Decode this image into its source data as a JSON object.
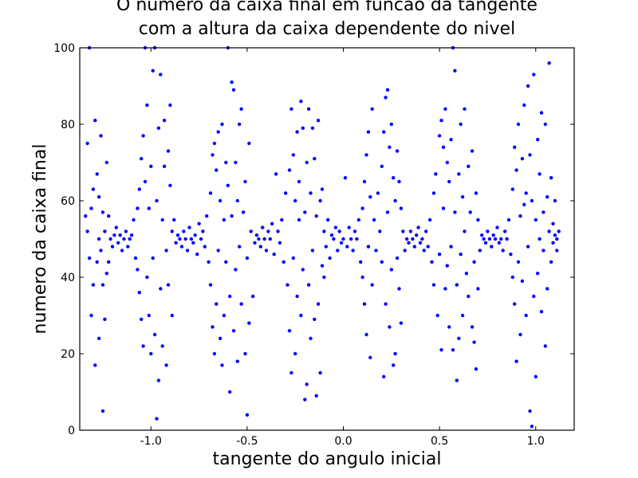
{
  "chart_data": {
    "type": "scatter",
    "title_line1": "O numero da caixa final em funcao da tangente",
    "title_line2": "com a altura da caixa dependente do nivel",
    "xlabel": "tangente do angulo inicial",
    "ylabel": "numero da caixa final",
    "xlim": [
      -1.37,
      1.2
    ],
    "ylim": [
      0,
      100
    ],
    "xticks": [
      -1.0,
      -0.5,
      0.0,
      0.5,
      1.0
    ],
    "xtick_labels": [
      "-1.0",
      "-0.5",
      "0.0",
      "0.5",
      "1.0"
    ],
    "yticks": [
      0,
      20,
      40,
      60,
      80,
      100
    ],
    "ytick_labels": [
      "0",
      "20",
      "40",
      "60",
      "80",
      "100"
    ],
    "grid": false,
    "color": "#0000ff",
    "x_range_of_points": [
      -1.35,
      1.12
    ],
    "central_value": 50,
    "points": [
      [
        -1.34,
        56
      ],
      [
        -1.33,
        52
      ],
      [
        -1.33,
        75
      ],
      [
        -1.32,
        100
      ],
      [
        -1.32,
        45
      ],
      [
        -1.31,
        30
      ],
      [
        -1.31,
        58
      ],
      [
        -1.3,
        63
      ],
      [
        -1.3,
        38
      ],
      [
        -1.29,
        17
      ],
      [
        -1.29,
        81
      ],
      [
        -1.28,
        67
      ],
      [
        -1.28,
        44
      ],
      [
        -1.27,
        24
      ],
      [
        -1.27,
        61
      ],
      [
        -1.27,
        50
      ],
      [
        -1.26,
        77
      ],
      [
        -1.26,
        47
      ],
      [
        -1.25,
        5
      ],
      [
        -1.25,
        38
      ],
      [
        -1.25,
        57
      ],
      [
        -1.24,
        29
      ],
      [
        -1.24,
        52
      ],
      [
        -1.23,
        70
      ],
      [
        -1.23,
        41
      ],
      [
        -1.22,
        44
      ],
      [
        -1.22,
        56
      ],
      [
        -1.21,
        50
      ],
      [
        -1.2,
        48
      ],
      [
        -1.19,
        51
      ],
      [
        -1.18,
        53
      ],
      [
        -1.17,
        49
      ],
      [
        -1.16,
        51
      ],
      [
        -1.15,
        47
      ],
      [
        -1.14,
        50
      ],
      [
        -1.13,
        52
      ],
      [
        -1.12,
        48
      ],
      [
        -1.11,
        50
      ],
      [
        -1.1,
        51
      ],
      [
        -1.09,
        55
      ],
      [
        -1.08,
        45
      ],
      [
        -1.07,
        58
      ],
      [
        -1.07,
        42
      ],
      [
        -1.06,
        63
      ],
      [
        -1.06,
        36
      ],
      [
        -1.05,
        71
      ],
      [
        -1.05,
        29
      ],
      [
        -1.04,
        77
      ],
      [
        -1.04,
        22
      ],
      [
        -1.03,
        100
      ],
      [
        -1.03,
        65
      ],
      [
        -1.02,
        40
      ],
      [
        -1.02,
        85
      ],
      [
        -1.01,
        58
      ],
      [
        -1.01,
        30
      ],
      [
        -1.0,
        20
      ],
      [
        -1.0,
        69
      ],
      [
        -0.99,
        94
      ],
      [
        -0.99,
        45
      ],
      [
        -0.98,
        100
      ],
      [
        -0.98,
        25
      ],
      [
        -0.97,
        60
      ],
      [
        -0.97,
        3
      ],
      [
        -0.96,
        13
      ],
      [
        -0.96,
        79
      ],
      [
        -0.95,
        37
      ],
      [
        -0.95,
        93
      ],
      [
        -0.94,
        55
      ],
      [
        -0.94,
        22
      ],
      [
        -0.93,
        69
      ],
      [
        -0.93,
        81
      ],
      [
        -0.92,
        47
      ],
      [
        -0.92,
        17
      ],
      [
        -0.91,
        73
      ],
      [
        -0.91,
        38
      ],
      [
        -0.9,
        64
      ],
      [
        -0.9,
        85
      ],
      [
        -0.89,
        30
      ],
      [
        -0.89,
        52
      ],
      [
        -0.88,
        55
      ],
      [
        -0.87,
        49
      ],
      [
        -0.86,
        51
      ],
      [
        -0.85,
        50
      ],
      [
        -0.84,
        48
      ],
      [
        -0.83,
        52
      ],
      [
        -0.82,
        50
      ],
      [
        -0.81,
        47
      ],
      [
        -0.8,
        53
      ],
      [
        -0.79,
        50
      ],
      [
        -0.78,
        49
      ],
      [
        -0.77,
        51
      ],
      [
        -0.76,
        46
      ],
      [
        -0.75,
        54
      ],
      [
        -0.74,
        50
      ],
      [
        -0.73,
        52
      ],
      [
        -0.72,
        48
      ],
      [
        -0.71,
        56
      ],
      [
        -0.7,
        44
      ],
      [
        -0.69,
        62
      ],
      [
        -0.69,
        38
      ],
      [
        -0.68,
        72
      ],
      [
        -0.68,
        27
      ],
      [
        -0.67,
        75
      ],
      [
        -0.67,
        20
      ],
      [
        -0.66,
        68
      ],
      [
        -0.66,
        33
      ],
      [
        -0.65,
        78
      ],
      [
        -0.65,
        47
      ],
      [
        -0.64,
        60
      ],
      [
        -0.64,
        24
      ],
      [
        -0.63,
        17
      ],
      [
        -0.63,
        80
      ],
      [
        -0.62,
        55
      ],
      [
        -0.62,
        30
      ],
      [
        -0.61,
        70
      ],
      [
        -0.61,
        44
      ],
      [
        -0.6,
        100
      ],
      [
        -0.6,
        64
      ],
      [
        -0.59,
        10
      ],
      [
        -0.59,
        35
      ],
      [
        -0.58,
        91
      ],
      [
        -0.58,
        56
      ],
      [
        -0.57,
        89
      ],
      [
        -0.57,
        26
      ],
      [
        -0.56,
        70
      ],
      [
        -0.56,
        42
      ],
      [
        -0.55,
        18
      ],
      [
        -0.55,
        60
      ],
      [
        -0.54,
        80
      ],
      [
        -0.54,
        48
      ],
      [
        -0.53,
        84
      ],
      [
        -0.53,
        33
      ],
      [
        -0.52,
        57
      ],
      [
        -0.51,
        20
      ],
      [
        -0.51,
        65
      ],
      [
        -0.5,
        4
      ],
      [
        -0.5,
        45
      ],
      [
        -0.49,
        75
      ],
      [
        -0.49,
        28
      ],
      [
        -0.48,
        52
      ],
      [
        -0.47,
        35
      ],
      [
        -0.46,
        49
      ],
      [
        -0.45,
        51
      ],
      [
        -0.44,
        50
      ],
      [
        -0.43,
        48
      ],
      [
        -0.42,
        53
      ],
      [
        -0.41,
        50
      ],
      [
        -0.4,
        47
      ],
      [
        -0.39,
        52
      ],
      [
        -0.38,
        50
      ],
      [
        -0.37,
        54
      ],
      [
        -0.36,
        46
      ],
      [
        -0.35,
        67
      ],
      [
        -0.34,
        52
      ],
      [
        -0.33,
        49
      ],
      [
        -0.32,
        55
      ],
      [
        -0.31,
        44
      ],
      [
        -0.3,
        62
      ],
      [
        -0.29,
        38
      ],
      [
        -0.28,
        68
      ],
      [
        -0.28,
        26
      ],
      [
        -0.27,
        84
      ],
      [
        -0.27,
        15
      ],
      [
        -0.26,
        72
      ],
      [
        -0.26,
        45
      ],
      [
        -0.25,
        60
      ],
      [
        -0.25,
        20
      ],
      [
        -0.24,
        78
      ],
      [
        -0.24,
        35
      ],
      [
        -0.23,
        55
      ],
      [
        -0.23,
        65
      ],
      [
        -0.22,
        86
      ],
      [
        -0.22,
        30
      ],
      [
        -0.21,
        79
      ],
      [
        -0.21,
        42
      ],
      [
        -0.2,
        8
      ],
      [
        -0.2,
        57
      ],
      [
        -0.19,
        12
      ],
      [
        -0.19,
        70
      ],
      [
        -0.18,
        84
      ],
      [
        -0.18,
        38
      ],
      [
        -0.17,
        24
      ],
      [
        -0.17,
        62
      ],
      [
        -0.16,
        79
      ],
      [
        -0.16,
        47
      ],
      [
        -0.15,
        29
      ],
      [
        -0.15,
        71
      ],
      [
        -0.14,
        9
      ],
      [
        -0.14,
        56
      ],
      [
        -0.13,
        81
      ],
      [
        -0.13,
        33
      ],
      [
        -0.12,
        60
      ],
      [
        -0.12,
        15
      ],
      [
        -0.11,
        43
      ],
      [
        -0.11,
        63
      ],
      [
        -0.1,
        52
      ],
      [
        -0.1,
        40
      ],
      [
        -0.09,
        48
      ],
      [
        -0.08,
        55
      ],
      [
        -0.07,
        45
      ],
      [
        -0.06,
        51
      ],
      [
        -0.05,
        50
      ],
      [
        -0.04,
        53
      ],
      [
        -0.03,
        47
      ],
      [
        -0.02,
        52
      ],
      [
        -0.01,
        49
      ],
      [
        0.0,
        50
      ],
      [
        0.01,
        66
      ],
      [
        0.02,
        48
      ],
      [
        0.03,
        53
      ],
      [
        0.04,
        50
      ],
      [
        0.05,
        47
      ],
      [
        0.06,
        52
      ],
      [
        0.07,
        50
      ],
      [
        0.08,
        55
      ],
      [
        0.09,
        44
      ],
      [
        0.1,
        58
      ],
      [
        0.1,
        40
      ],
      [
        0.11,
        65
      ],
      [
        0.11,
        33
      ],
      [
        0.12,
        72
      ],
      [
        0.12,
        25
      ],
      [
        0.13,
        78
      ],
      [
        0.13,
        48
      ],
      [
        0.14,
        61
      ],
      [
        0.14,
        19
      ],
      [
        0.15,
        84
      ],
      [
        0.15,
        38
      ],
      [
        0.16,
        55
      ],
      [
        0.17,
        47
      ],
      [
        0.18,
        62
      ],
      [
        0.19,
        52
      ],
      [
        0.2,
        44
      ],
      [
        0.2,
        69
      ],
      [
        0.21,
        78
      ],
      [
        0.21,
        14
      ],
      [
        0.22,
        87
      ],
      [
        0.22,
        33
      ],
      [
        0.23,
        89
      ],
      [
        0.23,
        57
      ],
      [
        0.24,
        27
      ],
      [
        0.24,
        74
      ],
      [
        0.25,
        80
      ],
      [
        0.25,
        42
      ],
      [
        0.26,
        66
      ],
      [
        0.26,
        17
      ],
      [
        0.27,
        20
      ],
      [
        0.27,
        60
      ],
      [
        0.28,
        73
      ],
      [
        0.28,
        45
      ],
      [
        0.29,
        37
      ],
      [
        0.29,
        65
      ],
      [
        0.3,
        28
      ],
      [
        0.3,
        58
      ],
      [
        0.31,
        52
      ],
      [
        0.32,
        47
      ],
      [
        0.33,
        50
      ],
      [
        0.34,
        49
      ],
      [
        0.35,
        52
      ],
      [
        0.36,
        50
      ],
      [
        0.37,
        48
      ],
      [
        0.38,
        51
      ],
      [
        0.39,
        53
      ],
      [
        0.4,
        49
      ],
      [
        0.41,
        50
      ],
      [
        0.42,
        47
      ],
      [
        0.43,
        52
      ],
      [
        0.44,
        48
      ],
      [
        0.45,
        55
      ],
      [
        0.46,
        44
      ],
      [
        0.47,
        62
      ],
      [
        0.47,
        38
      ],
      [
        0.48,
        67
      ],
      [
        0.49,
        30
      ],
      [
        0.5,
        77
      ],
      [
        0.5,
        46
      ],
      [
        0.51,
        21
      ],
      [
        0.51,
        81
      ],
      [
        0.52,
        58
      ],
      [
        0.52,
        74
      ],
      [
        0.53,
        84
      ],
      [
        0.53,
        37
      ],
      [
        0.54,
        70
      ],
      [
        0.54,
        43
      ],
      [
        0.55,
        65
      ],
      [
        0.55,
        27
      ],
      [
        0.56,
        76
      ],
      [
        0.56,
        48
      ],
      [
        0.57,
        100
      ],
      [
        0.57,
        21
      ],
      [
        0.58,
        94
      ],
      [
        0.58,
        57
      ],
      [
        0.59,
        13
      ],
      [
        0.59,
        38
      ],
      [
        0.6,
        67
      ],
      [
        0.6,
        24
      ],
      [
        0.61,
        80
      ],
      [
        0.61,
        46
      ],
      [
        0.62,
        61
      ],
      [
        0.62,
        30
      ],
      [
        0.63,
        84
      ],
      [
        0.63,
        52
      ],
      [
        0.64,
        41
      ],
      [
        0.65,
        69
      ],
      [
        0.65,
        35
      ],
      [
        0.66,
        57
      ],
      [
        0.67,
        27
      ],
      [
        0.67,
        73
      ],
      [
        0.68,
        23
      ],
      [
        0.68,
        44
      ],
      [
        0.69,
        16
      ],
      [
        0.69,
        62
      ],
      [
        0.7,
        37
      ],
      [
        0.7,
        55
      ],
      [
        0.71,
        47
      ],
      [
        0.72,
        51
      ],
      [
        0.73,
        50
      ],
      [
        0.74,
        49
      ],
      [
        0.75,
        52
      ],
      [
        0.76,
        50
      ],
      [
        0.77,
        48
      ],
      [
        0.78,
        51
      ],
      [
        0.79,
        50
      ],
      [
        0.8,
        53
      ],
      [
        0.81,
        49
      ],
      [
        0.82,
        50
      ],
      [
        0.83,
        47
      ],
      [
        0.84,
        52
      ],
      [
        0.85,
        50
      ],
      [
        0.86,
        55
      ],
      [
        0.87,
        46
      ],
      [
        0.88,
        63
      ],
      [
        0.88,
        40
      ],
      [
        0.89,
        74
      ],
      [
        0.89,
        33
      ],
      [
        0.9,
        68
      ],
      [
        0.9,
        18
      ],
      [
        0.91,
        80
      ],
      [
        0.91,
        44
      ],
      [
        0.92,
        56
      ],
      [
        0.92,
        25
      ],
      [
        0.93,
        71
      ],
      [
        0.93,
        39
      ],
      [
        0.94,
        59
      ],
      [
        0.94,
        85
      ],
      [
        0.95,
        30
      ],
      [
        0.95,
        62
      ],
      [
        0.96,
        90
      ],
      [
        0.96,
        48
      ],
      [
        0.97,
        5
      ],
      [
        0.97,
        72
      ],
      [
        0.98,
        1
      ],
      [
        0.98,
        60
      ],
      [
        0.99,
        93
      ],
      [
        0.99,
        35
      ],
      [
        1.0,
        55
      ],
      [
        1.0,
        14
      ],
      [
        1.01,
        76
      ],
      [
        1.01,
        41
      ],
      [
        1.02,
        50
      ],
      [
        1.02,
        67
      ],
      [
        1.03,
        83
      ],
      [
        1.03,
        31
      ],
      [
        1.04,
        57
      ],
      [
        1.04,
        47
      ],
      [
        1.05,
        80
      ],
      [
        1.05,
        22
      ],
      [
        1.06,
        61
      ],
      [
        1.06,
        37
      ],
      [
        1.07,
        96
      ],
      [
        1.07,
        52
      ],
      [
        1.08,
        44
      ],
      [
        1.08,
        66
      ],
      [
        1.09,
        54
      ],
      [
        1.09,
        49
      ],
      [
        1.1,
        51
      ],
      [
        1.1,
        60
      ],
      [
        1.11,
        50
      ],
      [
        1.11,
        47
      ],
      [
        1.12,
        52
      ]
    ]
  }
}
